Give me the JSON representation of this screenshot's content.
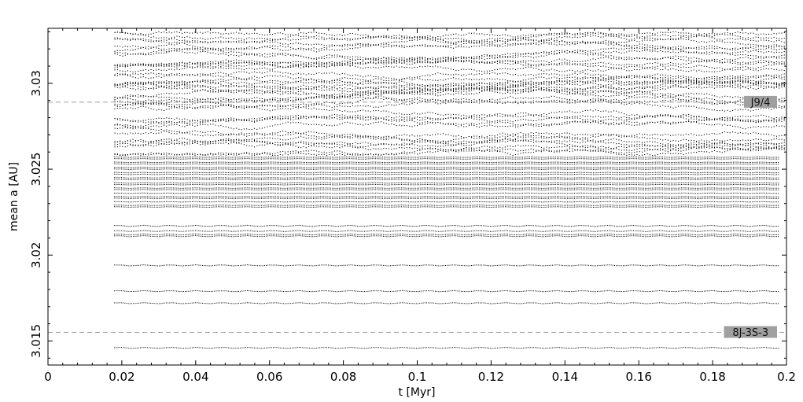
{
  "chart_data": {
    "type": "scatter",
    "xlabel": "t [Myr]",
    "ylabel": "mean a [AU]",
    "xlim": [
      0,
      0.2
    ],
    "ylim": [
      3.0136,
      3.0332
    ],
    "x_ticks": [
      "0",
      "0.02",
      "0.04",
      "0.06",
      "0.08",
      "0.1",
      "0.12",
      "0.14",
      "0.16",
      "0.18",
      "0.2"
    ],
    "y_ticks": [
      {
        "value": 3.015,
        "label": "3.015"
      },
      {
        "value": 3.02,
        "label": "3.02"
      },
      {
        "value": 3.025,
        "label": "3.025"
      },
      {
        "value": 3.03,
        "label": "3.03"
      }
    ],
    "grid": false,
    "legend": "none",
    "point_color": "#000000",
    "time_range": [
      0.018,
      0.2
    ],
    "stable_tracks": [
      3.0146,
      3.0172,
      3.0179,
      3.0194,
      3.0211,
      3.0212,
      3.0214,
      3.0217,
      3.0228,
      3.0229,
      3.0231,
      3.0233,
      3.0234,
      3.0236,
      3.0238,
      3.0239,
      3.0241,
      3.0242,
      3.0244,
      3.0245,
      3.0247,
      3.0248,
      3.025,
      3.0251,
      3.0253,
      3.0254,
      3.0256,
      3.0257
    ],
    "diffusive_band": [
      3.0258,
      3.033
    ],
    "resonances": [
      {
        "label": "J9/4",
        "a": 3.0289
      },
      {
        "label": "8J-3S-3",
        "a": 3.0155
      }
    ],
    "resonance_line_color": "#a0a0a0",
    "resonance_label_bg": "#a0a0a0"
  }
}
